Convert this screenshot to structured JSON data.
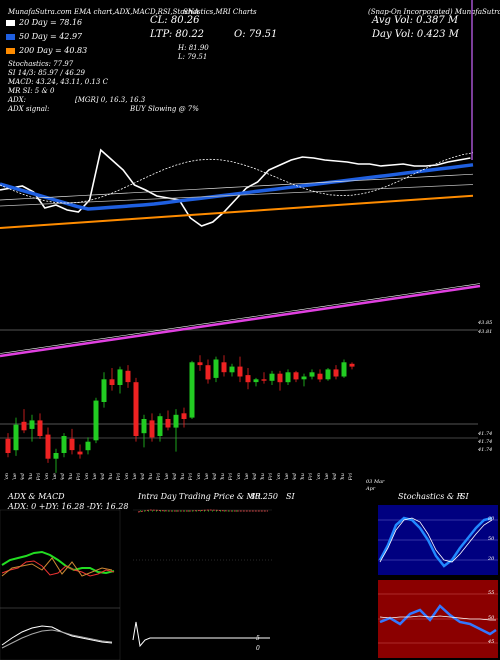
{
  "header": {
    "title_left": "MunafaSutra.com  EMA chart,ADX,MACD,RSI,Stochastics,MRI Charts",
    "title_ticker": "SNA",
    "title_name": "(Snap-On Incorporated) MunafaSutra.com",
    "avg_vol": "Avg Vol: 0.387 M",
    "day_vol": "Day Vol: 0.423 M",
    "cl": "CL: 80.26",
    "ltp": "LTP: 80.22",
    "open": "O: 79.51",
    "high": "H: 81.90",
    "low": "L: 79.51",
    "ema_lines": [
      "20 Day = 78.16",
      "50 Day = 42.97",
      "200 Day = 40.83"
    ],
    "indicator_lines": [
      "Stochastics: 77.97",
      "SI  14/3: 85.97 / 46.29",
      "MACD: 43.24,  43.11,  0.13 C",
      "MR          SI: 5 & 0",
      "ADX:",
      "ADX  signal:"
    ],
    "adx_value": "[MGR] 0,  16.3,  16.3",
    "signal_value": "BUY Slowing @ 7%"
  },
  "colors": {
    "ema20": "#ffffff",
    "ema50": "#1f5fe0",
    "ema200": "#ff8c00",
    "bb": "#e040e0",
    "up": "#22cc22",
    "down": "#ee2222"
  },
  "main_chart": {
    "right_labels": [
      "43.85",
      "43.81",
      "41.74",
      "41.74",
      "41.74"
    ],
    "date_ticks": [
      "20 Jan Mon",
      "21 Jan Tue",
      "22 Jan Wed",
      "23 Jan Thu",
      "24 Jan Fri",
      "27 Jan Mon",
      "28 Jan Tue",
      "29 Jan Wed",
      "30 Jan Thu",
      "31 Jan Fri",
      "03 Feb Mon",
      "04 Feb Tue",
      "05 Feb Wed",
      "06 Feb Thu",
      "07 Feb Fri",
      "10 Feb Mon",
      "11 Feb Tue",
      "12 Feb Wed",
      "13 Feb Thu",
      "14 Feb Fri",
      "18 Feb Tue",
      "19 Feb Wed",
      "20 Feb Thu",
      "21 Feb Fri",
      "24 Feb Mon",
      "25 Feb Tue",
      "26 Feb Wed",
      "27 Feb Thu",
      "28 Feb Fri",
      "02 Mar Mon",
      "03 Mar Tue",
      "04 Mar Wed",
      "05 Mar Thu",
      "06 Mar Fri",
      "09 Mar Mon",
      "10 Mar Tue",
      "11 Mar Wed",
      "12 Mar Thu",
      "13 Mar Fri",
      "16 Mar Mon",
      "17 Mar Tue",
      "18 Mar Wed",
      "19 Mar Thu",
      "20 Mar Fri"
    ],
    "right_date": "03 Mar",
    "right_date2": "Apr"
  },
  "panels": {
    "adx_title": "ADX  & MACD",
    "adx_values": "ADX: 0   +DY: 16.28   -DY: 16.28",
    "intraday_title": "Intra Day Trading Price  & MR",
    "intraday_value": "80.250",
    "intraday_si": "SI",
    "stoch_title": "Stochastics & R",
    "stoch_si": "SI",
    "mini_labels": [
      "5",
      "0"
    ],
    "stoch_ticks": [
      "80",
      "50",
      "20"
    ],
    "rsi_ticks": [
      "55",
      "50",
      "45"
    ]
  },
  "chart_data": {
    "type": "candlestick",
    "title": "MunafaSutra.com  EMA chart,ADX,MACD,RSI,Stochastics,MRI Charts SNA",
    "ylim": [
      36,
      48
    ],
    "candles": [
      [
        38.2,
        38.6,
        36.9,
        37.2
      ],
      [
        37.4,
        39.7,
        37.0,
        39.2
      ],
      [
        39.4,
        40.3,
        38.6,
        38.8
      ],
      [
        38.9,
        39.9,
        38.0,
        39.5
      ],
      [
        39.5,
        40.0,
        38.2,
        38.4
      ],
      [
        38.5,
        39.0,
        36.5,
        36.8
      ],
      [
        36.8,
        37.5,
        35.8,
        37.2
      ],
      [
        37.2,
        38.6,
        36.9,
        38.4
      ],
      [
        38.2,
        38.9,
        37.1,
        37.4
      ],
      [
        37.3,
        37.8,
        36.8,
        37.1
      ],
      [
        37.4,
        38.3,
        37.1,
        38.0
      ],
      [
        38.1,
        41.1,
        37.9,
        40.9
      ],
      [
        40.8,
        42.9,
        40.4,
        42.4
      ],
      [
        42.4,
        43.2,
        41.6,
        42.0
      ],
      [
        42.0,
        43.3,
        41.4,
        43.1
      ],
      [
        43.0,
        43.4,
        41.8,
        42.2
      ],
      [
        42.2,
        42.5,
        38.0,
        38.4
      ],
      [
        38.6,
        39.9,
        37.6,
        39.6
      ],
      [
        39.5,
        40.0,
        38.0,
        38.3
      ],
      [
        38.4,
        40.0,
        38.0,
        39.8
      ],
      [
        39.6,
        40.2,
        38.8,
        39.0
      ],
      [
        39.0,
        40.3,
        37.3,
        39.9
      ],
      [
        40.0,
        40.4,
        39.0,
        39.6
      ],
      [
        39.7,
        43.7,
        39.6,
        43.6
      ],
      [
        43.6,
        44.1,
        43.0,
        43.4
      ],
      [
        43.4,
        43.8,
        42.1,
        42.4
      ],
      [
        42.5,
        44.0,
        42.2,
        43.8
      ],
      [
        43.6,
        44.1,
        42.6,
        42.9
      ],
      [
        42.9,
        43.5,
        42.6,
        43.3
      ],
      [
        43.3,
        44.0,
        42.2,
        42.6
      ],
      [
        42.7,
        43.2,
        41.7,
        42.2
      ],
      [
        42.2,
        42.5,
        41.9,
        42.4
      ],
      [
        42.4,
        42.9,
        42.1,
        42.3
      ],
      [
        42.3,
        43.0,
        42.0,
        42.8
      ],
      [
        42.8,
        43.0,
        41.6,
        42.2
      ],
      [
        42.2,
        43.1,
        42.0,
        42.9
      ],
      [
        42.9,
        43.0,
        42.2,
        42.4
      ],
      [
        42.4,
        42.8,
        41.9,
        42.6
      ],
      [
        42.6,
        43.1,
        42.4,
        42.9
      ],
      [
        42.8,
        43.1,
        42.2,
        42.4
      ],
      [
        42.4,
        43.2,
        42.3,
        43.1
      ],
      [
        43.1,
        43.4,
        42.4,
        42.6
      ],
      [
        42.6,
        43.8,
        42.5,
        43.6
      ],
      [
        43.5,
        43.6,
        43.1,
        43.3
      ]
    ]
  }
}
